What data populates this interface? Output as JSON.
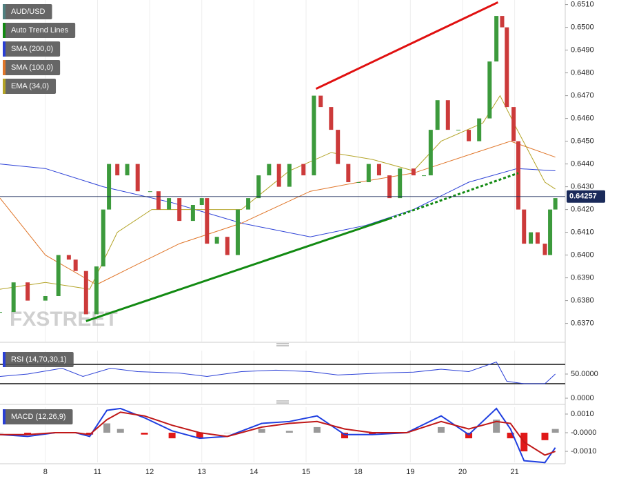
{
  "chart_data": [
    {
      "type": "candlestick",
      "name": "AUD/USD",
      "legend_color": "#4f8080",
      "up_color": "#3c9a3c",
      "down_color": "#cc3a3a",
      "x": [
        -0.87,
        -0.61,
        -0.34,
        0,
        0.25,
        0.45,
        0.58,
        0.78,
        0.98,
        1.11,
        1.22,
        1.38,
        1.57,
        1.77,
        2.01,
        2.17,
        2.37,
        2.57,
        2.83,
        3.0,
        3.1,
        3.29,
        3.49,
        3.69,
        3.89,
        4.09,
        4.29,
        4.48,
        4.68,
        4.95,
        5.15,
        5.28,
        5.48,
        5.61,
        5.81,
        6.01,
        6.2,
        6.4,
        6.6,
        6.8,
        7.06,
        7.26,
        7.39,
        7.52,
        7.72,
        7.92,
        8.12,
        8.32,
        8.52,
        8.65,
        8.76,
        8.85,
        8.98,
        9.07,
        9.18,
        9.31,
        9.44,
        9.58,
        9.68,
        9.78
      ],
      "values": [
        0.6375,
        0.6388,
        0.638,
        0.6382,
        0.64,
        0.6398,
        0.6393,
        0.6374,
        0.6395,
        0.642,
        0.644,
        0.6435,
        0.644,
        0.6428,
        0.6428,
        0.642,
        0.6425,
        0.6415,
        0.6422,
        0.6425,
        0.6405,
        0.6408,
        0.64,
        0.642,
        0.6425,
        0.6435,
        0.644,
        0.643,
        0.644,
        0.6435,
        0.647,
        0.6465,
        0.6455,
        0.644,
        0.6432,
        0.6432,
        0.644,
        0.6435,
        0.6425,
        0.6438,
        0.6435,
        0.6435,
        0.6455,
        0.6468,
        0.6455,
        0.6455,
        0.645,
        0.646,
        0.6485,
        0.6505,
        0.65,
        0.6465,
        0.645,
        0.642,
        0.6405,
        0.641,
        0.6405,
        0.64,
        0.642,
        0.6425
      ],
      "series": [
        {
          "name": "SMA (200,0)",
          "color": "#2a3fd6",
          "x": [
            -0.87,
            0,
            1.11,
            2.43,
            3.76,
            5.08,
            6.14,
            7.06,
            8.12,
            9.05,
            9.78
          ],
          "values": [
            0.644,
            0.6438,
            0.643,
            0.6423,
            0.6414,
            0.6408,
            0.6413,
            0.642,
            0.6432,
            0.6438,
            0.6437
          ]
        },
        {
          "name": "SMA (100,0)",
          "color": "#e0762a",
          "x": [
            -0.87,
            0,
            0.98,
            1.77,
            2.57,
            3.76,
            5.08,
            6.01,
            7.06,
            8.12,
            8.92,
            9.78
          ],
          "values": [
            0.6425,
            0.64,
            0.6387,
            0.6396,
            0.6405,
            0.6414,
            0.6428,
            0.6432,
            0.6436,
            0.6444,
            0.645,
            0.6443
          ]
        },
        {
          "name": "EMA (34,0)",
          "color": "#b3a326",
          "x": [
            -0.87,
            0,
            0.85,
            1.38,
            2.04,
            3.1,
            3.76,
            4.68,
            5.48,
            6.27,
            7.06,
            7.59,
            8.39,
            8.72,
            9.05,
            9.58,
            9.78
          ],
          "values": [
            0.6385,
            0.6388,
            0.6385,
            0.641,
            0.642,
            0.642,
            0.642,
            0.6437,
            0.6445,
            0.6442,
            0.6437,
            0.645,
            0.6458,
            0.647,
            0.6455,
            0.6432,
            0.6429
          ]
        }
      ],
      "trend_lines": {
        "name": "Auto Trend Lines",
        "color": "#128a12",
        "lines": [
          {
            "color": "#e01010",
            "dashed": false,
            "x": [
              5.19,
              8.68
            ],
            "values": [
              0.6473,
              0.6511
            ]
          },
          {
            "color": "#128a12",
            "dashed": false,
            "x": [
              0.78,
              6.6
            ],
            "values": [
              0.6371,
              0.6416
            ]
          },
          {
            "color": "#128a12",
            "dashed": true,
            "x": [
              6.6,
              9.07
            ],
            "values": [
              0.6416,
              0.6436
            ]
          }
        ]
      },
      "last_price": 0.64257,
      "watermark": "FXSTREET",
      "xlim": [
        -0.87,
        9.97
      ],
      "ylim": [
        0.6362,
        0.6512
      ],
      "grid": true,
      "xticks": [
        {
          "value": 0,
          "label": "8"
        },
        {
          "value": 1,
          "label": "11"
        },
        {
          "value": 2,
          "label": "12"
        },
        {
          "value": 3,
          "label": "13"
        },
        {
          "value": 4,
          "label": "14"
        },
        {
          "value": 5,
          "label": "15"
        },
        {
          "value": 6,
          "label": "18"
        },
        {
          "value": 7,
          "label": "19"
        },
        {
          "value": 8,
          "label": "20"
        },
        {
          "value": 9,
          "label": "21"
        }
      ],
      "yticks": [
        {
          "value": 0.637,
          "label": "0.6370"
        },
        {
          "value": 0.638,
          "label": "0.6380"
        },
        {
          "value": 0.639,
          "label": "0.6390"
        },
        {
          "value": 0.64,
          "label": "0.6400"
        },
        {
          "value": 0.641,
          "label": "0.6410"
        },
        {
          "value": 0.642,
          "label": "0.6420"
        },
        {
          "value": 0.643,
          "label": "0.6430"
        },
        {
          "value": 0.644,
          "label": "0.6440"
        },
        {
          "value": 0.645,
          "label": "0.6450"
        },
        {
          "value": 0.646,
          "label": "0.6460"
        },
        {
          "value": 0.647,
          "label": "0.6470"
        },
        {
          "value": 0.648,
          "label": "0.6480"
        },
        {
          "value": 0.649,
          "label": "0.6490"
        },
        {
          "value": 0.65,
          "label": "0.6500"
        },
        {
          "value": 0.651,
          "label": "0.6510"
        }
      ]
    },
    {
      "type": "line",
      "name": "RSI (14,70,30,1)",
      "legend_color": "#2a3fd6",
      "color": "#2a3fd6",
      "x": [
        -0.87,
        -0.34,
        0.32,
        0.72,
        1.25,
        1.77,
        2.57,
        3.1,
        3.76,
        4.42,
        5.08,
        5.61,
        6.4,
        7.06,
        7.59,
        8.12,
        8.65,
        8.85,
        9.18,
        9.58,
        9.78
      ],
      "values": [
        45,
        50,
        62,
        45,
        62,
        55,
        52,
        45,
        55,
        58,
        55,
        48,
        52,
        54,
        60,
        55,
        75,
        35,
        30,
        30,
        50
      ],
      "hlines": [
        70,
        30
      ],
      "xlim": [
        -0.87,
        9.97
      ],
      "ylim": [
        -11.4,
        98.6
      ],
      "yticks": [
        {
          "value": 0,
          "label": "0.0000"
        },
        {
          "value": 50,
          "label": "50.0000"
        }
      ]
    },
    {
      "type": "macd",
      "name": "MACD (12,26,9)",
      "legend_color": "#2a3fd6",
      "x": [
        -0.87,
        -0.34,
        0.19,
        0.58,
        0.85,
        1.18,
        1.44,
        1.9,
        2.43,
        2.96,
        3.49,
        4.15,
        4.68,
        5.21,
        5.74,
        6.27,
        6.93,
        7.59,
        8.12,
        8.65,
        8.92,
        9.18,
        9.58,
        9.78
      ],
      "series": [
        {
          "name": "MACD",
          "color": "#1f3fe0",
          "values": [
            -0.0001,
            -0.0002,
            0,
            0,
            -0.0002,
            0.0012,
            0.0013,
            0.0008,
            0.0001,
            -0.0003,
            -0.0002,
            0.0005,
            0.0006,
            0.0009,
            -0.0001,
            -0.0001,
            0,
            0.0009,
            -0.0001,
            0.0013,
            0.0002,
            -0.0015,
            -0.0016,
            -0.0008
          ]
        },
        {
          "name": "Signal",
          "color": "#c01818",
          "values": [
            -0.0001,
            -0.0001,
            0,
            0,
            -0.0001,
            0.0007,
            0.0011,
            0.0009,
            0.0004,
            0,
            -0.0002,
            0.0003,
            0.0005,
            0.0006,
            0.0002,
            0,
            0,
            0.0006,
            0.0002,
            0.0006,
            0.0005,
            -0.0005,
            -0.0012,
            -0.001
          ]
        }
      ],
      "histogram": [
        0,
        -0.0001,
        0,
        0,
        -0.0001,
        0.0005,
        0.0002,
        -0.0001,
        -0.0003,
        -0.0003,
        0,
        0.0002,
        0.0001,
        0.0003,
        -0.0003,
        -0.0001,
        0,
        0.0003,
        -0.0003,
        0.0007,
        -0.0003,
        -0.001,
        -0.0004,
        0.0002
      ],
      "hist_colors": [
        "#999999",
        "#e01818"
      ],
      "xlim": [
        -0.87,
        9.97
      ],
      "ylim": [
        -0.00159,
        0.00137
      ],
      "yticks": [
        {
          "value": 0.001,
          "label": "0.0010"
        },
        {
          "value": 0,
          "label": "-0.0000"
        },
        {
          "value": -0.001,
          "label": "-0.0010"
        }
      ]
    }
  ]
}
